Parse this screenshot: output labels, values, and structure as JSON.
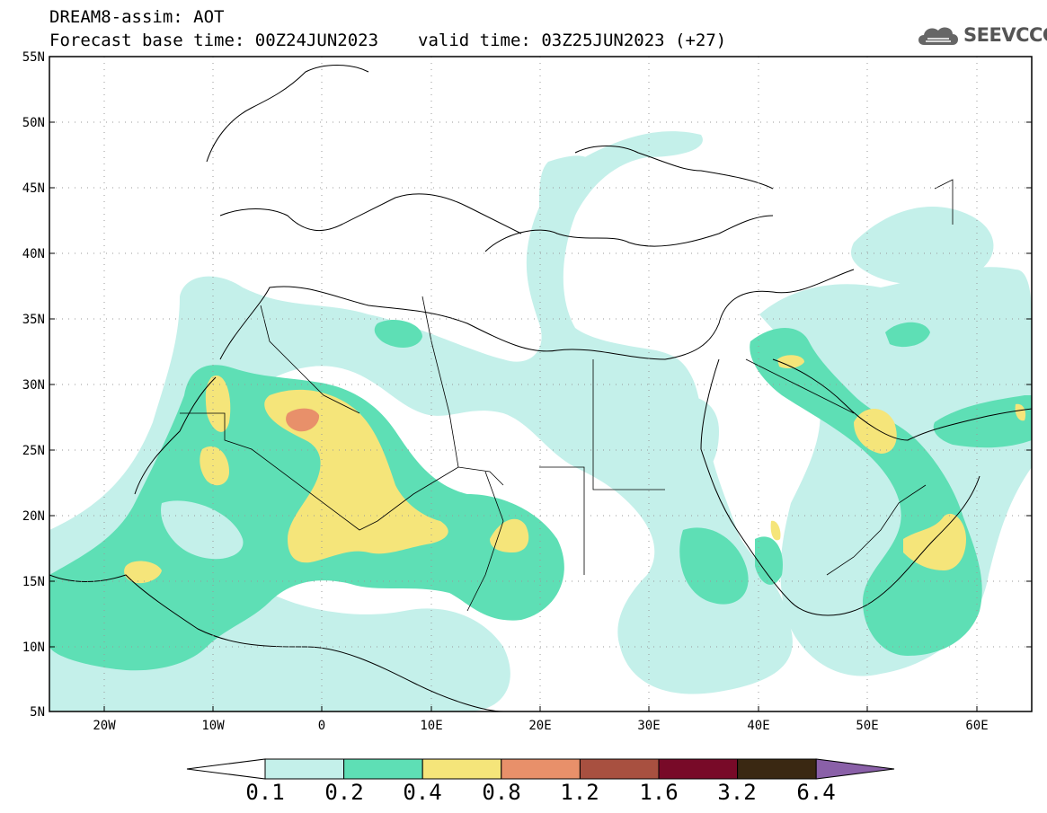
{
  "header": {
    "title": "DREAM8-assim: AOT",
    "base_time": "Forecast base time: 00Z24JUN2023",
    "valid_time": "valid time: 03Z25JUN2023 (+27)"
  },
  "logo": {
    "text": "SEEVCCC",
    "icon": "cloud-icon"
  },
  "map": {
    "projection": "lat-lon",
    "lon_range": [
      -25,
      65
    ],
    "lat_range": [
      5,
      55
    ],
    "grid": "dotted",
    "lat_labels": [
      "55N",
      "50N",
      "45N",
      "40N",
      "35N",
      "30N",
      "25N",
      "20N",
      "15N",
      "10N",
      "5N"
    ],
    "lon_labels": [
      "20W",
      "10W",
      "0",
      "10E",
      "20E",
      "30E",
      "40E",
      "50E",
      "60E"
    ]
  },
  "colorbar": {
    "labels": [
      "0.1",
      "0.2",
      "0.4",
      "0.8",
      "1.2",
      "1.6",
      "3.2",
      "6.4"
    ],
    "colors": [
      "#ffffff",
      "#c4f0ea",
      "#5edfb5",
      "#f5e57a",
      "#e8906a",
      "#a85040",
      "#780a28",
      "#3a2812",
      "#8a60a8"
    ]
  }
}
